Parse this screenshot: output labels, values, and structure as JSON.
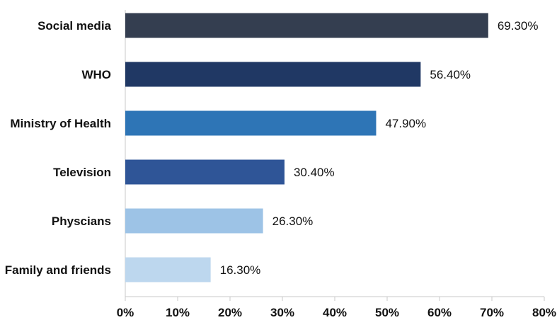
{
  "chart_data": {
    "type": "bar",
    "orientation": "horizontal",
    "categories": [
      "Social media",
      "WHO",
      "Ministry of Health",
      "Television",
      "Physcians",
      "Family and friends"
    ],
    "values": [
      69.3,
      56.4,
      47.9,
      30.4,
      26.3,
      16.3
    ],
    "value_labels": [
      "69.30%",
      "56.40%",
      "47.90%",
      "30.40%",
      "26.30%",
      "16.30%"
    ],
    "bar_colors": [
      "#343e50",
      "#203864",
      "#2e75b6",
      "#2f5597",
      "#9dc3e6",
      "#bdd7ee"
    ],
    "xlim": [
      0,
      80
    ],
    "xticks": [
      0,
      10,
      20,
      30,
      40,
      50,
      60,
      70,
      80
    ],
    "xtick_labels": [
      "0%",
      "10%",
      "20%",
      "30%",
      "40%",
      "50%",
      "60%",
      "70%",
      "80%"
    ],
    "grid": false,
    "legend": "none",
    "title": "",
    "xlabel": "",
    "ylabel": ""
  }
}
